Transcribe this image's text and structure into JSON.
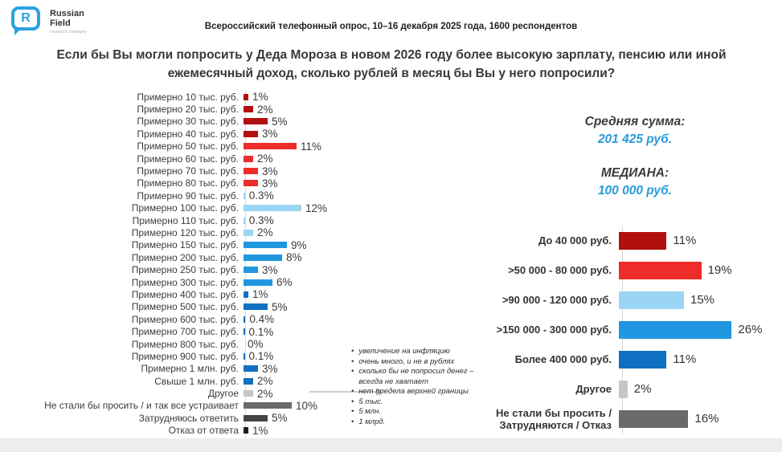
{
  "logo": {
    "brand_line1": "Russian",
    "brand_line2": "Field",
    "tagline": "research company",
    "mark_letter": "R"
  },
  "header": {
    "survey_info": "Всероссийский телефонный опрос, 10–16 декабря 2025 года, 1600 респондентов"
  },
  "title": "Если бы Вы могли попросить у Деда Мороза в новом 2026 году более высокую зарплату, пенсию или иной ежемесячный доход, сколько рублей в месяц бы Вы у него попросили?",
  "stats": {
    "mean_label": "Средняя сумма:",
    "mean_value": "201 425 руб.",
    "median_label": "МЕДИАНА:",
    "median_value": "100 000 руб."
  },
  "annotations": {
    "other_bullets": [
      "увеличение на  инфляцию",
      "очень много, и не в рублях",
      "сколько бы не попросил денег – всегда не хватает",
      "нет предела верхней границы",
      "5 тыс.",
      "5 млн.",
      "1 млрд."
    ]
  },
  "colors": {
    "dark_red": "#b2100f",
    "red": "#ee2c2a",
    "light_blue": "#9ad5f3",
    "medium_blue": "#2196e0",
    "dark_blue": "#0f70c1",
    "light_gray": "#c6c6c6",
    "mid_gray": "#6a6a6a",
    "dark_gray": "#454545",
    "near_black": "#1d1d1d",
    "accent_blue": "#2a9bd8"
  },
  "chart_data": [
    {
      "type": "bar",
      "orientation": "horizontal",
      "name": "detailed-distribution",
      "unit": "%",
      "xlim": [
        0,
        12
      ],
      "rows": [
        {
          "label": "Примерно 10 тыс. руб.",
          "value": 1,
          "display": "1%",
          "color": "#b2100f"
        },
        {
          "label": "Примерно 20 тыс. руб.",
          "value": 2,
          "display": "2%",
          "color": "#b2100f"
        },
        {
          "label": "Примерно 30 тыс. руб.",
          "value": 5,
          "display": "5%",
          "color": "#b2100f"
        },
        {
          "label": "Примерно 40 тыс. руб.",
          "value": 3,
          "display": "3%",
          "color": "#b2100f"
        },
        {
          "label": "Примерно 50 тыс. руб.",
          "value": 11,
          "display": "11%",
          "color": "#ee2c2a"
        },
        {
          "label": "Примерно 60 тыс. руб.",
          "value": 2,
          "display": "2%",
          "color": "#ee2c2a"
        },
        {
          "label": "Примерно 70 тыс. руб.",
          "value": 3,
          "display": "3%",
          "color": "#ee2c2a"
        },
        {
          "label": "Примерно 80 тыс. руб.",
          "value": 3,
          "display": "3%",
          "color": "#ee2c2a"
        },
        {
          "label": "Примерно 90 тыс. руб.",
          "value": 0.3,
          "display": "0.3%",
          "color": "#9ad5f3"
        },
        {
          "label": "Примерно 100 тыс. руб.",
          "value": 12,
          "display": "12%",
          "color": "#9ad5f3"
        },
        {
          "label": "Примерно 110 тыс. руб.",
          "value": 0.3,
          "display": "0.3%",
          "color": "#9ad5f3"
        },
        {
          "label": "Примерно 120 тыс. руб.",
          "value": 2,
          "display": "2%",
          "color": "#9ad5f3"
        },
        {
          "label": "Примерно 150 тыс. руб.",
          "value": 9,
          "display": "9%",
          "color": "#2196e0"
        },
        {
          "label": "Примерно 200 тыс. руб.",
          "value": 8,
          "display": "8%",
          "color": "#2196e0"
        },
        {
          "label": "Примерно 250 тыс. руб.",
          "value": 3,
          "display": "3%",
          "color": "#2196e0"
        },
        {
          "label": "Примерно 300 тыс. руб.",
          "value": 6,
          "display": "6%",
          "color": "#2196e0"
        },
        {
          "label": "Примерно 400 тыс. руб.",
          "value": 1,
          "display": "1%",
          "color": "#0f70c1"
        },
        {
          "label": "Примерно 500 тыс. руб.",
          "value": 5,
          "display": "5%",
          "color": "#0f70c1"
        },
        {
          "label": "Примерно 600 тыс. руб.",
          "value": 0.4,
          "display": "0.4%",
          "color": "#0f70c1"
        },
        {
          "label": "Примерно 700 тыс. руб.",
          "value": 0.1,
          "display": "0.1%",
          "color": "#0f70c1"
        },
        {
          "label": "Примерно 800 тыс. руб.",
          "value": 0,
          "display": "0%",
          "color": "#0f70c1"
        },
        {
          "label": "Примерно 900 тыс. руб.",
          "value": 0.1,
          "display": "0.1%",
          "color": "#0f70c1"
        },
        {
          "label": "Примерно 1 млн. руб.",
          "value": 3,
          "display": "3%",
          "color": "#0f70c1"
        },
        {
          "label": "Свыше 1 млн. руб.",
          "value": 2,
          "display": "2%",
          "color": "#0f70c1"
        },
        {
          "label": "Другое",
          "value": 2,
          "display": "2%",
          "color": "#c6c6c6"
        },
        {
          "label": "Не стали бы просить / и так все устраивает",
          "value": 10,
          "display": "10%",
          "color": "#6a6a6a"
        },
        {
          "label": "Затрудняюсь ответить",
          "value": 5,
          "display": "5%",
          "color": "#454545"
        },
        {
          "label": "Отказ от ответа",
          "value": 1,
          "display": "1%",
          "color": "#1d1d1d"
        }
      ]
    },
    {
      "type": "bar",
      "orientation": "horizontal",
      "name": "grouped-distribution",
      "unit": "%",
      "xlim": [
        0,
        26
      ],
      "rows": [
        {
          "label": "До 40 000 руб.",
          "value": 11,
          "display": "11%",
          "color": "#b2100f"
        },
        {
          "label": ">50 000 - 80 000 руб.",
          "value": 19,
          "display": "19%",
          "color": "#ee2c2a"
        },
        {
          "label": ">90 000 - 120 000 руб.",
          "value": 15,
          "display": "15%",
          "color": "#9ad5f3"
        },
        {
          "label": ">150 000 - 300 000 руб.",
          "value": 26,
          "display": "26%",
          "color": "#2196e0"
        },
        {
          "label": "Более 400 000 руб.",
          "value": 11,
          "display": "11%",
          "color": "#0f70c1"
        },
        {
          "label": "Другое",
          "value": 2,
          "display": "2%",
          "color": "#c6c6c6"
        },
        {
          "label": "Не стали бы просить / Затрудняются / Отказ",
          "value": 16,
          "display": "16%",
          "color": "#6a6a6a"
        }
      ]
    }
  ]
}
